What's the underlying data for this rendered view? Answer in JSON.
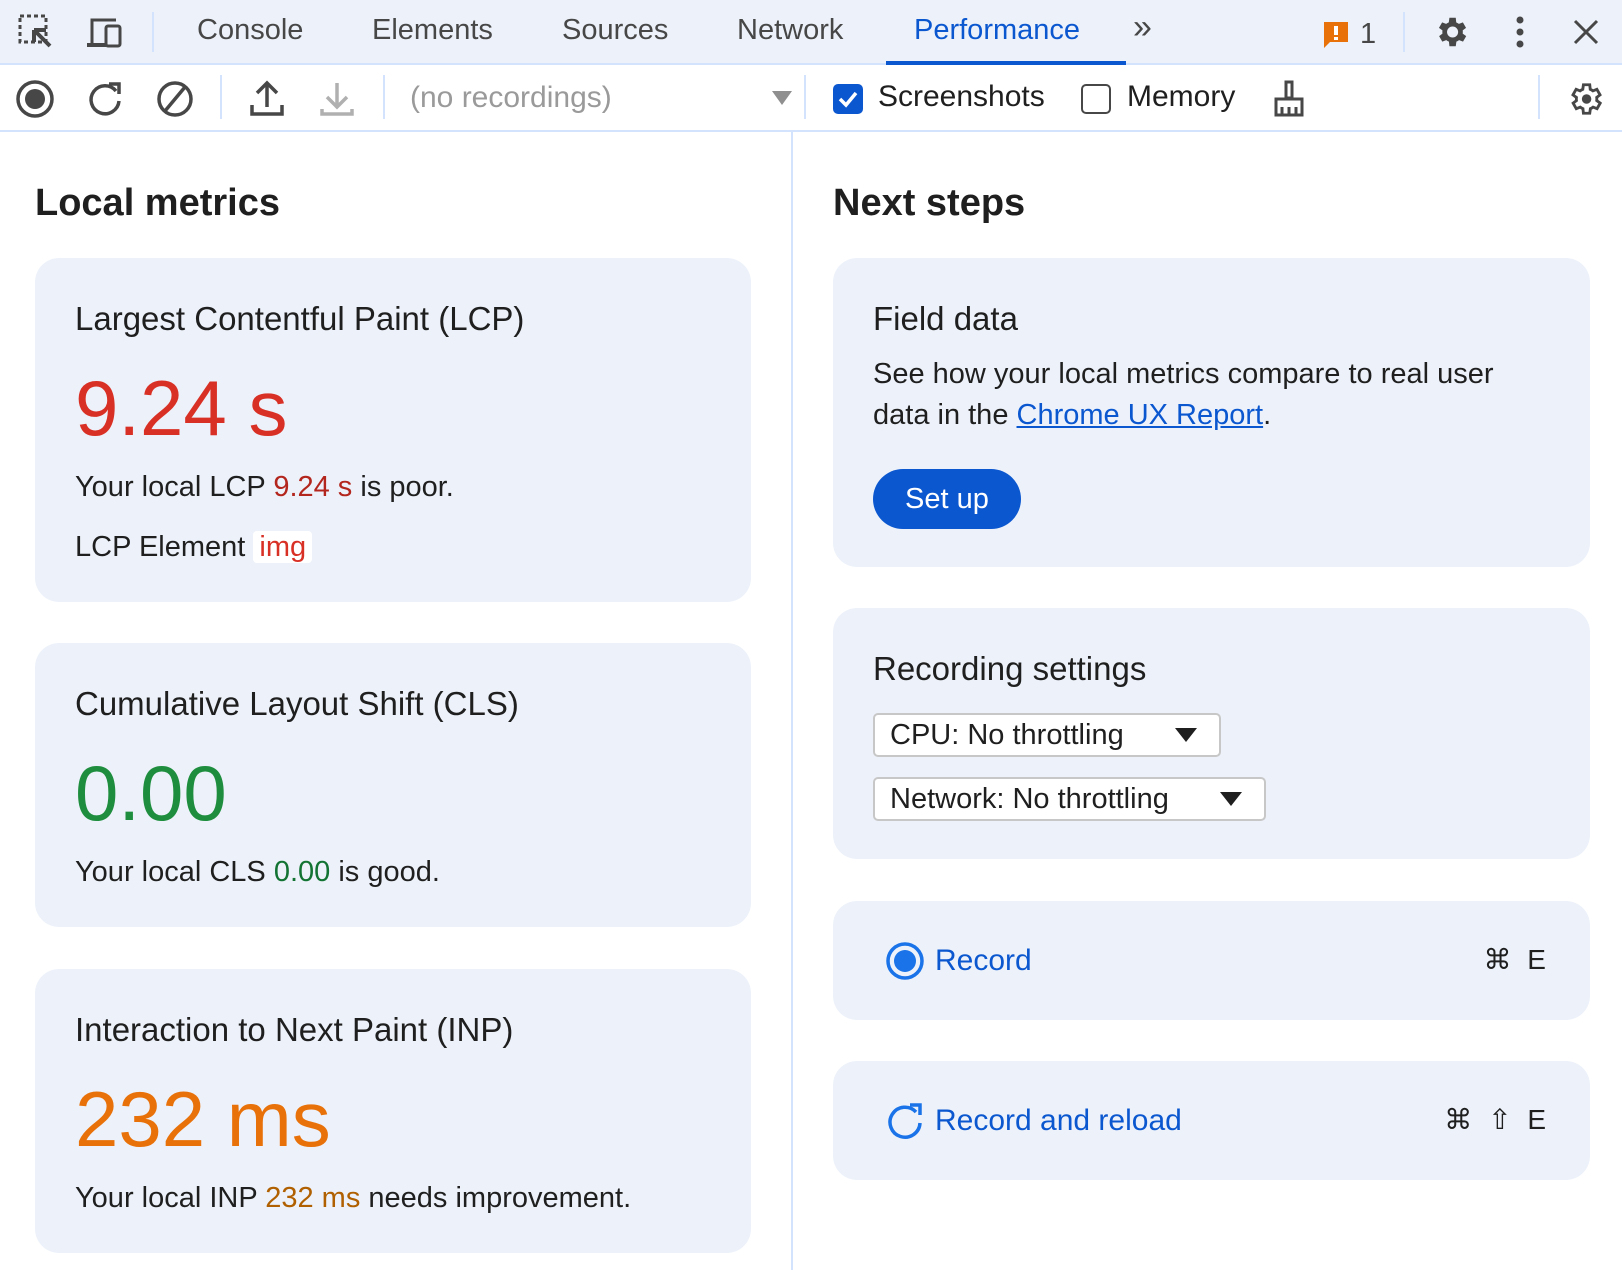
{
  "tabbar": {
    "tabs": [
      {
        "label": "Console"
      },
      {
        "label": "Elements"
      },
      {
        "label": "Sources"
      },
      {
        "label": "Network"
      },
      {
        "label": "Performance",
        "active": true
      }
    ],
    "more_label": "»",
    "issues_count": "1",
    "accent": "#0b57d0"
  },
  "toolbar": {
    "recordings_placeholder": "(no recordings)",
    "screenshots_label": "Screenshots",
    "screenshots_checked": true,
    "memory_label": "Memory",
    "memory_checked": false
  },
  "local_metrics": {
    "title": "Local metrics",
    "lcp": {
      "title": "Largest Contentful Paint (LCP)",
      "value": "9.24 s",
      "desc_prefix": "Your local LCP ",
      "desc_value": "9.24 s",
      "desc_suffix": " is poor.",
      "element_label": "LCP Element",
      "element_value": "img",
      "color": "#d93025"
    },
    "cls": {
      "title": "Cumulative Layout Shift (CLS)",
      "value": "0.00",
      "desc_prefix": "Your local CLS ",
      "desc_value": "0.00",
      "desc_suffix": " is good.",
      "color": "#1e8e3e"
    },
    "inp": {
      "title": "Interaction to Next Paint (INP)",
      "value": "232 ms",
      "desc_prefix": "Your local INP ",
      "desc_value": "232 ms",
      "desc_suffix": " needs improvement.",
      "color": "#e8710a"
    }
  },
  "next_steps": {
    "title": "Next steps",
    "field_data": {
      "title": "Field data",
      "desc_prefix": "See how your local metrics compare to real user data in the ",
      "link": "Chrome UX Report",
      "desc_suffix": ".",
      "button": "Set up"
    },
    "recording_settings": {
      "title": "Recording settings",
      "cpu": "CPU: No throttling",
      "network": "Network: No throttling"
    },
    "record": {
      "label": "Record",
      "shortcut": "⌘ E"
    },
    "record_reload": {
      "label": "Record and reload",
      "shortcut": "⌘ ⇧ E"
    }
  }
}
